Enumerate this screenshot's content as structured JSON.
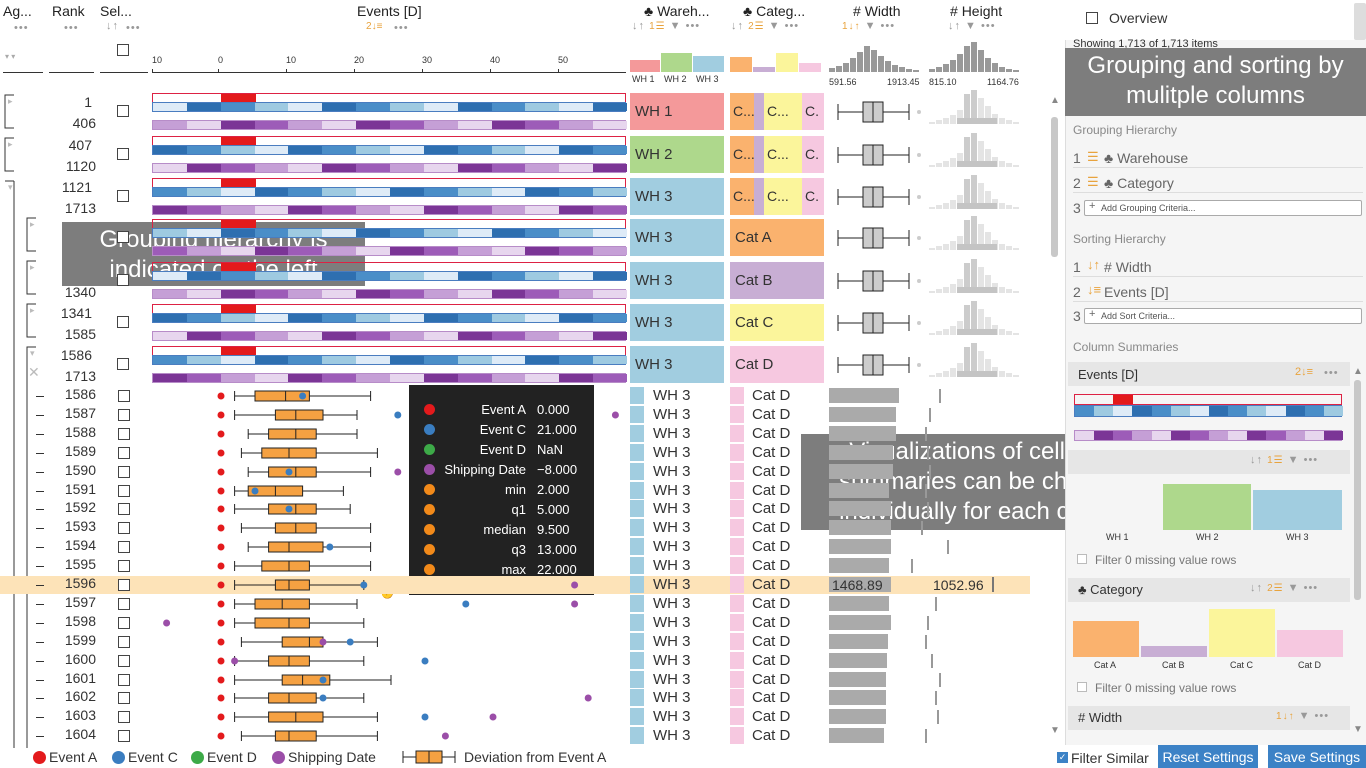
{
  "header": {
    "aggregate": "Ag...",
    "rank": "Rank",
    "selection": "Sel...",
    "events": "Events [D]",
    "warehouse": "Wareh...",
    "category": "Categ...",
    "width": "Width",
    "height": "Height",
    "events_sort_rank": "2"
  },
  "axis": {
    "ticks": [
      "10",
      "0",
      "10",
      "20",
      "30",
      "40",
      "50"
    ]
  },
  "warehouse_summary": {
    "labels": [
      "WH 1",
      "WH 2",
      "WH 3"
    ]
  },
  "width_summary": {
    "min": "591.56",
    "max": "1913.45"
  },
  "height_summary": {
    "min": "815.10",
    "max": "1164.76"
  },
  "groups": [
    {
      "start": "1",
      "end": "406",
      "wh": "WH 1",
      "cat": "C...",
      "cat2": "C...",
      "cat3": "C."
    },
    {
      "start": "407",
      "end": "1120",
      "wh": "WH 2",
      "cat": "C...",
      "cat2": "C...",
      "cat3": "C."
    },
    {
      "start": "1121",
      "end": "1713",
      "wh": "WH 3",
      "cat": "C...",
      "cat2": "C...",
      "cat3": "C."
    },
    {
      "start": "",
      "end": "",
      "wh": "WH 3",
      "cat": "Cat A"
    },
    {
      "start": "",
      "end": "1340",
      "wh": "WH 3",
      "cat": "Cat B"
    },
    {
      "start": "1341",
      "end": "1585",
      "wh": "WH 3",
      "cat": "Cat C"
    },
    {
      "start": "1586",
      "end": "1713",
      "wh": "WH 3",
      "cat": "Cat D"
    }
  ],
  "rows": [
    "1586",
    "1587",
    "1588",
    "1589",
    "1590",
    "1591",
    "1592",
    "1593",
    "1594",
    "1595",
    "1596",
    "1597",
    "1598",
    "1599",
    "1600",
    "1601",
    "1602",
    "1603",
    "1604"
  ],
  "row_wh": "WH 3",
  "row_cat": "Cat D",
  "highlight": {
    "width": "1468.89",
    "height": "1052.96"
  },
  "tooltip": {
    "items": [
      {
        "label": "Event A",
        "value": "0.000",
        "color": "#e31a1c"
      },
      {
        "label": "Event C",
        "value": "21.000",
        "color": "#3a7dc0"
      },
      {
        "label": "Event D",
        "value": "NaN",
        "color": "#3daa48"
      },
      {
        "label": "Shipping Date",
        "value": "−8.000",
        "color": "#9b4ea8"
      },
      {
        "label": "min",
        "value": "2.000",
        "color": "#f28a1a"
      },
      {
        "label": "q1",
        "value": "5.000",
        "color": "#f28a1a"
      },
      {
        "label": "median",
        "value": "9.500",
        "color": "#f28a1a"
      },
      {
        "label": "q3",
        "value": "13.000",
        "color": "#f28a1a"
      },
      {
        "label": "max",
        "value": "22.000",
        "color": "#f28a1a"
      }
    ]
  },
  "overlays": {
    "left": "Grouping hierarchy is indicated on the left",
    "right": "Visualizations of cells and summaries can be changed individually for each column",
    "top": "Grouping and sorting by mulitple columns"
  },
  "legend": {
    "a": "Event A",
    "c": "Event C",
    "d": "Event D",
    "ship": "Shipping Date",
    "dev": "Deviation from Event A"
  },
  "footer": {
    "filter_similar": "Filter Similar",
    "reset": "Reset Settings",
    "save": "Save Settings"
  },
  "sidebar": {
    "overview": "Overview",
    "showing": "Showing 1,713 of 1,713 items",
    "grouping_title": "Grouping Hierarchy",
    "grouping": [
      "Warehouse",
      "Category"
    ],
    "grouping_nums": [
      "1",
      "2",
      "3"
    ],
    "add_grouping": "Add Grouping Criteria...",
    "sorting_title": "Sorting Hierarchy",
    "sorting": [
      "Width",
      "Events [D]"
    ],
    "add_sort": "Add Sort Criteria...",
    "summaries_title": "Column Summaries",
    "events_col": "Events [D]",
    "events_rank": "2",
    "warehouse_rank": "1",
    "wh_labels": [
      "WH 1",
      "WH 2",
      "WH 3"
    ],
    "filter_missing": "Filter 0 missing value rows",
    "category_col": "Category",
    "category_rank": "2",
    "cat_labels": [
      "Cat A",
      "Cat B",
      "Cat C",
      "Cat D"
    ],
    "width_col": "Width",
    "width_rank": "1"
  },
  "colors": {
    "wh1": "#f4999a",
    "wh2": "#aed88c",
    "wh3": "#a1cde0",
    "catA": "#fab26e",
    "catB": "#c8aed4",
    "catC": "#fbf59b",
    "catD": "#f6c8e0",
    "accent": "#f0a830",
    "button": "#3c82c6"
  }
}
